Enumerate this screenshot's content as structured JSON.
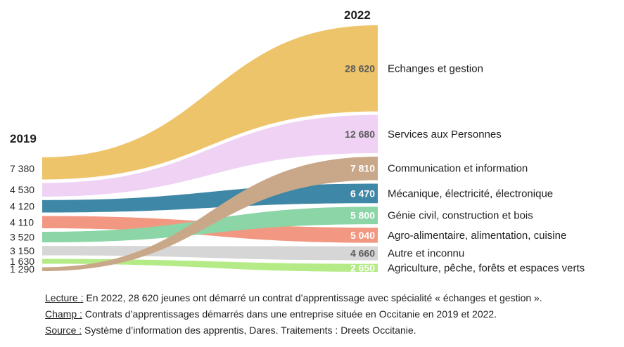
{
  "chart_data": {
    "type": "slope-stream",
    "year_left": "2019",
    "year_right": "2022",
    "series": [
      {
        "name": "Echanges et gestion",
        "v2019": 7380,
        "v2022": 28620,
        "label_2019": "7 380",
        "label_2022": "28 620",
        "color": "#EEC46A",
        "value_color": "#5a5a5a"
      },
      {
        "name": "Services aux Personnes",
        "v2019": 4530,
        "v2022": 12680,
        "label_2019": "4 530",
        "label_2022": "12 680",
        "color": "#EFD2F4",
        "value_color": "#5a5a5a"
      },
      {
        "name": "Communication et information",
        "v2019": 1290,
        "v2022": 7810,
        "label_2019": "1 290",
        "label_2022": "7 810",
        "color": "#C9A88A",
        "value_color": "#ffffff"
      },
      {
        "name": "Mécanique, électricité, électronique",
        "v2019": 4120,
        "v2022": 6470,
        "label_2019": "4 120",
        "label_2022": "6 470",
        "color": "#3F87A6",
        "value_color": "#ffffff"
      },
      {
        "name": "Génie civil, construction et bois",
        "v2019": 3520,
        "v2022": 5800,
        "label_2019": "3 520",
        "label_2022": "5 800",
        "color": "#8BD5A6",
        "value_color": "#ffffff"
      },
      {
        "name": "Agro-alimentaire, alimentation, cuisine",
        "v2019": 4110,
        "v2022": 5040,
        "label_2019": "4 110",
        "label_2022": "5 040",
        "color": "#F29882",
        "value_color": "#ffffff"
      },
      {
        "name": "Autre et inconnu",
        "v2019": 3150,
        "v2022": 4660,
        "label_2019": "3 150",
        "label_2022": "4 660",
        "color": "#D6D6D6",
        "value_color": "#5a5a5a"
      },
      {
        "name": "Agriculture, pêche, forêts et espaces verts",
        "v2019": 1630,
        "v2022": 2650,
        "label_2019": "1 630",
        "label_2022": "2 650",
        "color": "#B4EB86",
        "value_color": "#ffffff"
      }
    ],
    "order_2019": [
      "Echanges et gestion",
      "Services aux Personnes",
      "Mécanique, électricité, électronique",
      "Agro-alimentaire, alimentation, cuisine",
      "Génie civil, construction et bois",
      "Autre et inconnu",
      "Agriculture, pêche, forêts et espaces verts",
      "Communication et information"
    ],
    "order_2022": [
      "Echanges et gestion",
      "Services aux Personnes",
      "Communication et information",
      "Mécanique, électricité, électronique",
      "Génie civil, construction et bois",
      "Agro-alimentaire, alimentation, cuisine",
      "Autre et inconnu",
      "Agriculture, pêche, forêts et espaces verts"
    ]
  },
  "notes": {
    "lecture_key": "Lecture :",
    "lecture_text": " En 2022, 28 620 jeunes ont démarré un contrat d’apprentissage avec spécialité « échanges et gestion ».",
    "champ_key": "Champ :",
    "champ_text": " Contrats d’apprentissages démarrés dans une entreprise située en Occitanie en 2019 et 2022.",
    "source_key": "Source :",
    "source_text": " Système d’information des apprentis, Dares. Traitements : Dreets Occitanie."
  }
}
